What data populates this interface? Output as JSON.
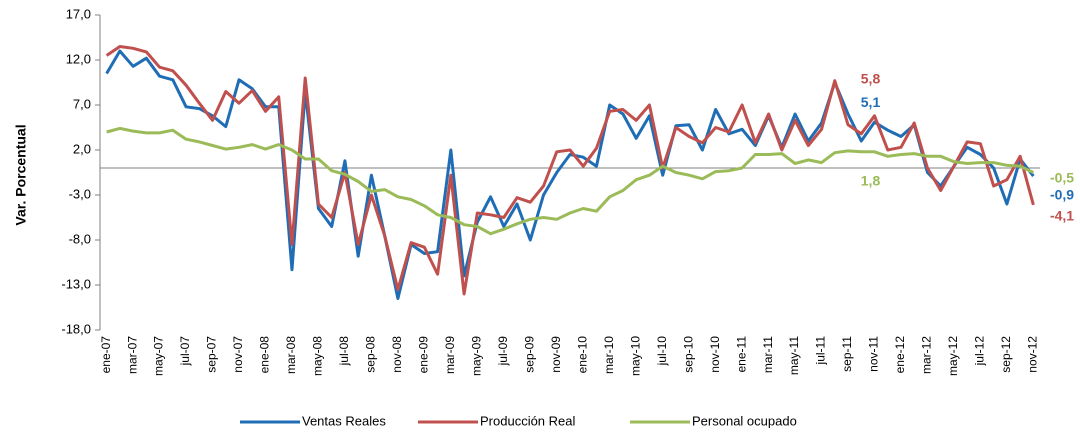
{
  "chart_data": {
    "type": "line",
    "y_label": "Var. Porcentual",
    "categories": [
      "ene-07",
      null,
      "mar-07",
      null,
      "may-07",
      null,
      "jul-07",
      null,
      "sep-07",
      null,
      "nov-07",
      null,
      "ene-08",
      null,
      "mar-08",
      null,
      "may-08",
      null,
      "jul-08",
      null,
      "sep-08",
      null,
      "nov-08",
      null,
      "ene-09",
      null,
      "mar-09",
      null,
      "may-09",
      null,
      "jul-09",
      null,
      "sep-09",
      null,
      "nov-09",
      null,
      "ene-10",
      null,
      "mar-10",
      null,
      "may-10",
      null,
      "jul-10",
      null,
      "sep-10",
      null,
      "nov-10",
      null,
      "ene-11",
      null,
      "mar-11",
      null,
      "may-11",
      null,
      "jul-11",
      null,
      "sep-11",
      null,
      "nov-11",
      null,
      "ene-12",
      null,
      "mar-12",
      null,
      "may-12",
      null,
      "jul-12",
      null,
      "sep-12",
      null,
      "nov-12"
    ],
    "ylim": [
      -18,
      17
    ],
    "yticks": [
      {
        "value": 17,
        "label": "17,0"
      },
      {
        "value": 12,
        "label": "12,0"
      },
      {
        "value": 7,
        "label": "7,0"
      },
      {
        "value": 2,
        "label": "2,0"
      },
      {
        "value": -3,
        "label": "-3,0"
      },
      {
        "value": -8,
        "label": "-8,0"
      },
      {
        "value": -13,
        "label": "-13,0"
      },
      {
        "value": -18,
        "label": "-18,0"
      }
    ],
    "series": [
      {
        "name": "Ventas Reales",
        "color": "#1f6db5",
        "values": [
          10.5,
          13.0,
          11.3,
          12.2,
          10.2,
          9.8,
          6.8,
          6.6,
          5.8,
          4.6,
          9.8,
          8.8,
          6.8,
          6.8,
          -11.3,
          8.5,
          -4.5,
          -6.5,
          0.8,
          -9.8,
          -0.8,
          -7.5,
          -14.5,
          -8.5,
          -9.5,
          -9.3,
          2.0,
          -12.0,
          -6.0,
          -3.2,
          -6.5,
          -4.0,
          -8.0,
          -3.0,
          -0.5,
          1.5,
          1.2,
          0.2,
          7.0,
          6.0,
          3.3,
          5.8,
          -0.8,
          4.7,
          4.8,
          2.0,
          6.5,
          3.8,
          4.3,
          2.5,
          5.8,
          2.3,
          6.0,
          3.0,
          5.0,
          9.5,
          6.0,
          3.0,
          5.1,
          4.2,
          3.5,
          4.8,
          -0.5,
          -2.0,
          0.2,
          2.3,
          1.5,
          0.0,
          -4.0,
          1.0,
          -0.9
        ],
        "value_labels": [
          null,
          null,
          null,
          null,
          null,
          null,
          null,
          null,
          null,
          null,
          null,
          null,
          null,
          null,
          null,
          null,
          null,
          null,
          null,
          null,
          null,
          null,
          null,
          null,
          null,
          null,
          null,
          null,
          null,
          null,
          null,
          null,
          null,
          null,
          null,
          null,
          null,
          null,
          null,
          null,
          null,
          null,
          null,
          null,
          null,
          null,
          null,
          null,
          null,
          null,
          null,
          null,
          null,
          null,
          null,
          null,
          null,
          null,
          "5,1",
          null,
          null,
          null,
          null,
          null,
          null,
          null,
          null,
          null,
          null,
          null,
          "-0,9"
        ]
      },
      {
        "name": "Producción Real",
        "color": "#c0504d",
        "values": [
          12.5,
          13.5,
          13.3,
          12.9,
          11.2,
          10.8,
          9.2,
          7.2,
          5.3,
          8.5,
          7.2,
          8.6,
          6.3,
          7.9,
          -8.5,
          10.0,
          -4.0,
          -5.5,
          -0.5,
          -8.5,
          -3.0,
          -7.5,
          -13.5,
          -8.3,
          -8.8,
          -11.8,
          -0.8,
          -14.0,
          -5.0,
          -5.2,
          -5.5,
          -3.3,
          -3.8,
          -2.0,
          1.8,
          2.0,
          0.2,
          2.2,
          6.3,
          6.5,
          5.3,
          7.0,
          0.0,
          4.5,
          3.5,
          2.8,
          4.5,
          4.0,
          7.0,
          2.8,
          6.0,
          2.0,
          5.3,
          2.5,
          4.3,
          9.7,
          4.8,
          3.8,
          5.8,
          2.0,
          2.3,
          5.0,
          0.0,
          -2.5,
          0.2,
          2.9,
          2.7,
          -2.0,
          -1.3,
          1.3,
          -4.1
        ],
        "value_labels": [
          null,
          null,
          null,
          null,
          null,
          null,
          null,
          null,
          null,
          null,
          null,
          null,
          null,
          null,
          null,
          null,
          null,
          null,
          null,
          null,
          null,
          null,
          null,
          null,
          null,
          null,
          null,
          null,
          null,
          null,
          null,
          null,
          null,
          null,
          null,
          null,
          null,
          null,
          null,
          null,
          null,
          null,
          null,
          null,
          null,
          null,
          null,
          null,
          null,
          null,
          null,
          null,
          null,
          null,
          null,
          null,
          null,
          null,
          "5,8",
          null,
          null,
          null,
          null,
          null,
          null,
          null,
          null,
          null,
          null,
          null,
          "-4,1"
        ]
      },
      {
        "name": "Personal ocupado",
        "color": "#9bbb59",
        "values": [
          4.0,
          4.4,
          4.1,
          3.9,
          3.9,
          4.2,
          3.2,
          2.9,
          2.5,
          2.1,
          2.3,
          2.6,
          2.1,
          2.6,
          2.0,
          1.0,
          1.0,
          -0.3,
          -0.7,
          -1.5,
          -2.6,
          -2.4,
          -3.2,
          -3.5,
          -4.2,
          -5.2,
          -5.5,
          -6.3,
          -6.5,
          -7.3,
          -6.8,
          -6.2,
          -5.7,
          -5.5,
          -5.7,
          -5.0,
          -4.5,
          -4.8,
          -3.2,
          -2.5,
          -1.3,
          -0.8,
          0.2,
          -0.5,
          -0.8,
          -1.2,
          -0.4,
          -0.3,
          0.0,
          1.5,
          1.5,
          1.6,
          0.5,
          0.9,
          0.6,
          1.7,
          1.9,
          1.8,
          1.8,
          1.3,
          1.5,
          1.6,
          1.3,
          1.3,
          0.7,
          0.5,
          0.6,
          0.6,
          0.3,
          0.2,
          -0.5
        ],
        "value_labels": [
          null,
          null,
          null,
          null,
          null,
          null,
          null,
          null,
          null,
          null,
          null,
          null,
          null,
          null,
          null,
          null,
          null,
          null,
          null,
          null,
          null,
          null,
          null,
          null,
          null,
          null,
          null,
          null,
          null,
          null,
          null,
          null,
          null,
          null,
          null,
          null,
          null,
          null,
          null,
          null,
          null,
          null,
          null,
          null,
          null,
          null,
          null,
          null,
          null,
          null,
          null,
          null,
          null,
          null,
          null,
          null,
          null,
          null,
          "1,8",
          null,
          null,
          null,
          null,
          null,
          null,
          null,
          null,
          null,
          null,
          null,
          "-0,5"
        ]
      }
    ]
  }
}
